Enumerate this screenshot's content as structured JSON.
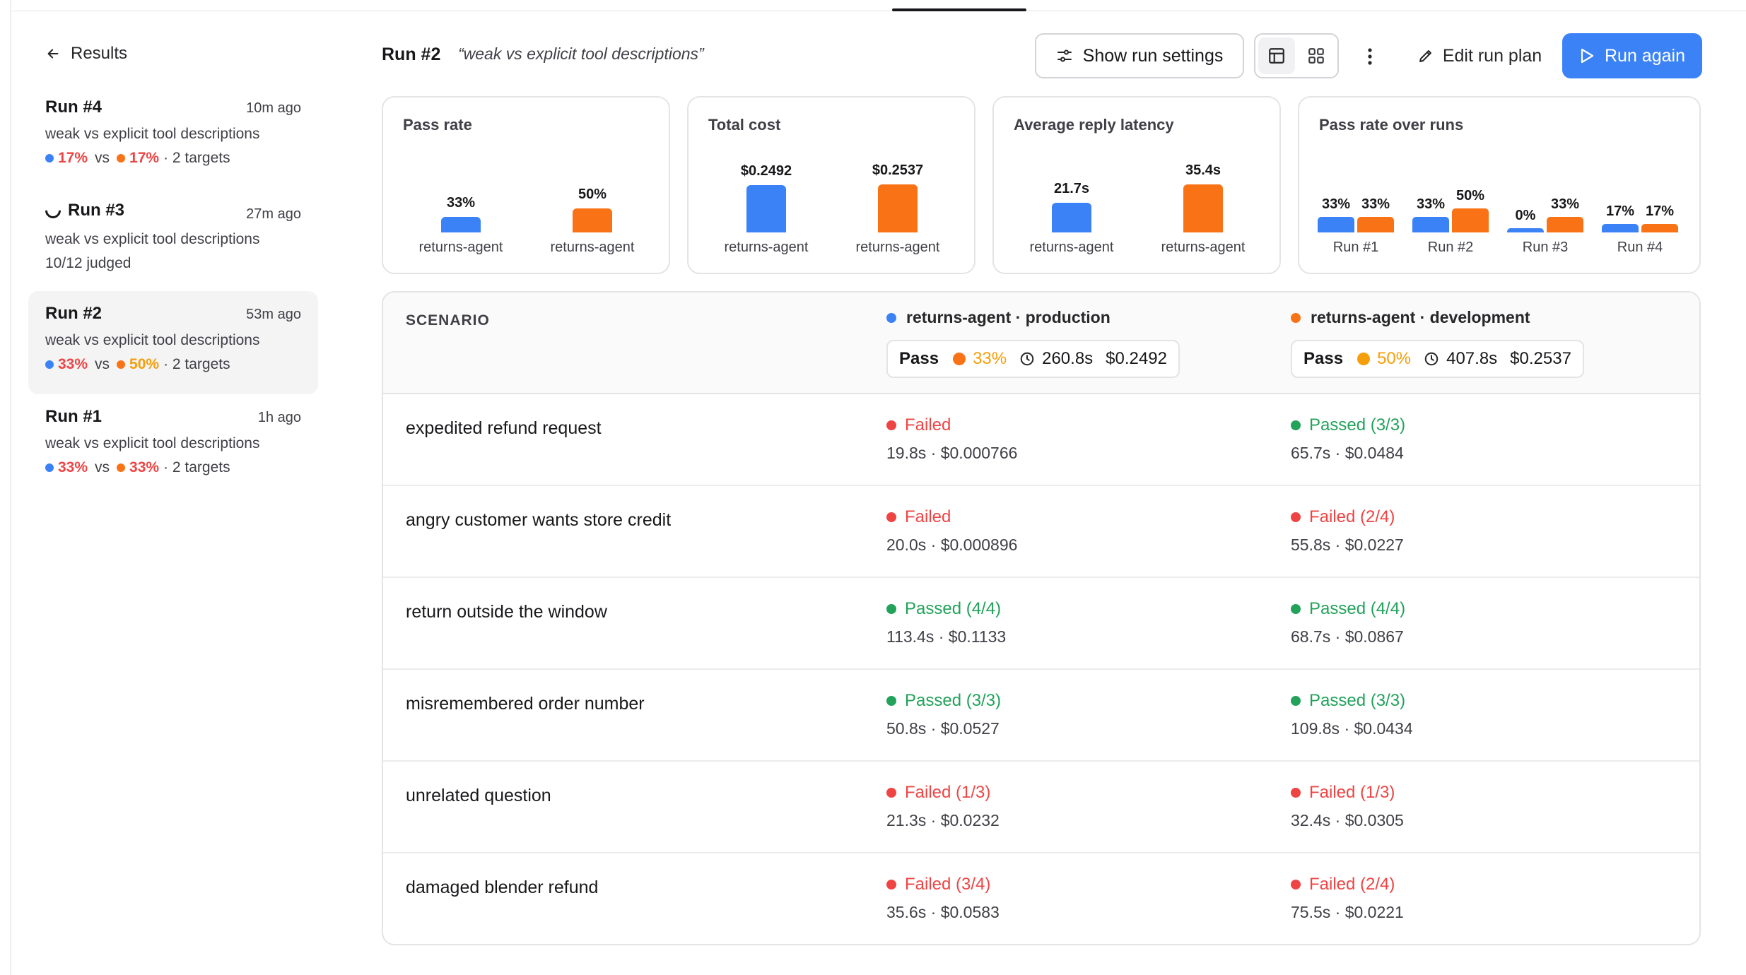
{
  "sidebar": {
    "back_label": "Results",
    "runs": [
      {
        "title": "Run #4",
        "time": "10m ago",
        "desc": "weak vs explicit tool descriptions",
        "a": "17%",
        "vs": "vs",
        "b": "17%",
        "targets": "· 2 targets"
      },
      {
        "title": "Run #3",
        "time": "27m ago",
        "desc": "weak vs explicit tool descriptions",
        "status": "10/12 judged"
      },
      {
        "title": "Run #2",
        "time": "53m ago",
        "desc": "weak vs explicit tool descriptions",
        "a": "33%",
        "vs": "vs",
        "b": "50%",
        "targets": "· 2 targets"
      },
      {
        "title": "Run #1",
        "time": "1h ago",
        "desc": "weak vs explicit tool descriptions",
        "a": "33%",
        "vs": "vs",
        "b": "33%",
        "targets": "· 2 targets"
      }
    ]
  },
  "header": {
    "run_name": "Run #2",
    "run_quote": "“weak vs explicit tool descriptions”",
    "show_settings": "Show run settings",
    "edit_plan": "Edit run plan",
    "run_again": "Run again"
  },
  "cards": {
    "pass_rate": {
      "title": "Pass rate",
      "a": {
        "value": "33%",
        "label": "returns-agent",
        "level": 0.33
      },
      "b": {
        "value": "50%",
        "label": "returns-agent",
        "level": 0.5
      }
    },
    "total_cost": {
      "title": "Total cost",
      "a": {
        "value": "$0.2492",
        "label": "returns-agent",
        "level": 0.2492
      },
      "b": {
        "value": "$0.2537",
        "label": "returns-agent",
        "level": 0.2537
      }
    },
    "latency": {
      "title": "Average reply latency",
      "a": {
        "value": "21.7s",
        "label": "returns-agent",
        "level": 21.7
      },
      "b": {
        "value": "35.4s",
        "label": "returns-agent",
        "level": 35.4
      }
    },
    "over_runs": {
      "title": "Pass rate over runs",
      "runs": [
        {
          "label": "Run #1",
          "a": "33%",
          "b": "33%",
          "a_level": 0.33,
          "b_level": 0.33
        },
        {
          "label": "Run #2",
          "a": "33%",
          "b": "50%",
          "a_level": 0.33,
          "b_level": 0.5
        },
        {
          "label": "Run #3",
          "a": "0%",
          "b": "33%",
          "a_level": 0.0,
          "b_level": 0.33
        },
        {
          "label": "Run #4",
          "a": "17%",
          "b": "17%",
          "a_level": 0.17,
          "b_level": 0.17
        }
      ]
    }
  },
  "table": {
    "scenario_header": "SCENARIO",
    "targets": [
      {
        "name": "returns-agent · production",
        "pass_label": "Pass",
        "pct": "33%",
        "time": "260.8s",
        "cost": "$0.2492"
      },
      {
        "name": "returns-agent · development",
        "pass_label": "Pass",
        "pct": "50%",
        "time": "407.8s",
        "cost": "$0.2537"
      }
    ],
    "rows": [
      {
        "scenario": "expedited refund request",
        "a": {
          "status": "Failed",
          "kind": "fail",
          "meta": "19.8s · $0.000766"
        },
        "b": {
          "status": "Passed (3/3)",
          "kind": "pass",
          "meta": "65.7s · $0.0484"
        }
      },
      {
        "scenario": "angry customer wants store credit",
        "a": {
          "status": "Failed",
          "kind": "fail",
          "meta": "20.0s · $0.000896"
        },
        "b": {
          "status": "Failed (2/4)",
          "kind": "fail",
          "meta": "55.8s · $0.0227"
        }
      },
      {
        "scenario": "return outside the window",
        "a": {
          "status": "Passed (4/4)",
          "kind": "pass",
          "meta": "113.4s · $0.1133"
        },
        "b": {
          "status": "Passed (4/4)",
          "kind": "pass",
          "meta": "68.7s · $0.0867"
        }
      },
      {
        "scenario": "misremembered order number",
        "a": {
          "status": "Passed (3/3)",
          "kind": "pass",
          "meta": "50.8s · $0.0527"
        },
        "b": {
          "status": "Passed (3/3)",
          "kind": "pass",
          "meta": "109.8s · $0.0434"
        }
      },
      {
        "scenario": "unrelated question",
        "a": {
          "status": "Failed (1/3)",
          "kind": "fail",
          "meta": "21.3s · $0.0232"
        },
        "b": {
          "status": "Failed (1/3)",
          "kind": "fail",
          "meta": "32.4s · $0.0305"
        }
      },
      {
        "scenario": "damaged blender refund",
        "a": {
          "status": "Failed (3/4)",
          "kind": "fail",
          "meta": "35.6s · $0.0583"
        },
        "b": {
          "status": "Failed (2/4)",
          "kind": "fail",
          "meta": "75.5s · $0.0221"
        }
      }
    ]
  },
  "colors": {
    "accent": "#3b82f6",
    "series_a": "#3b82f6",
    "series_b": "#f97316",
    "fail": "#ef4444",
    "pass": "#22a25b"
  }
}
